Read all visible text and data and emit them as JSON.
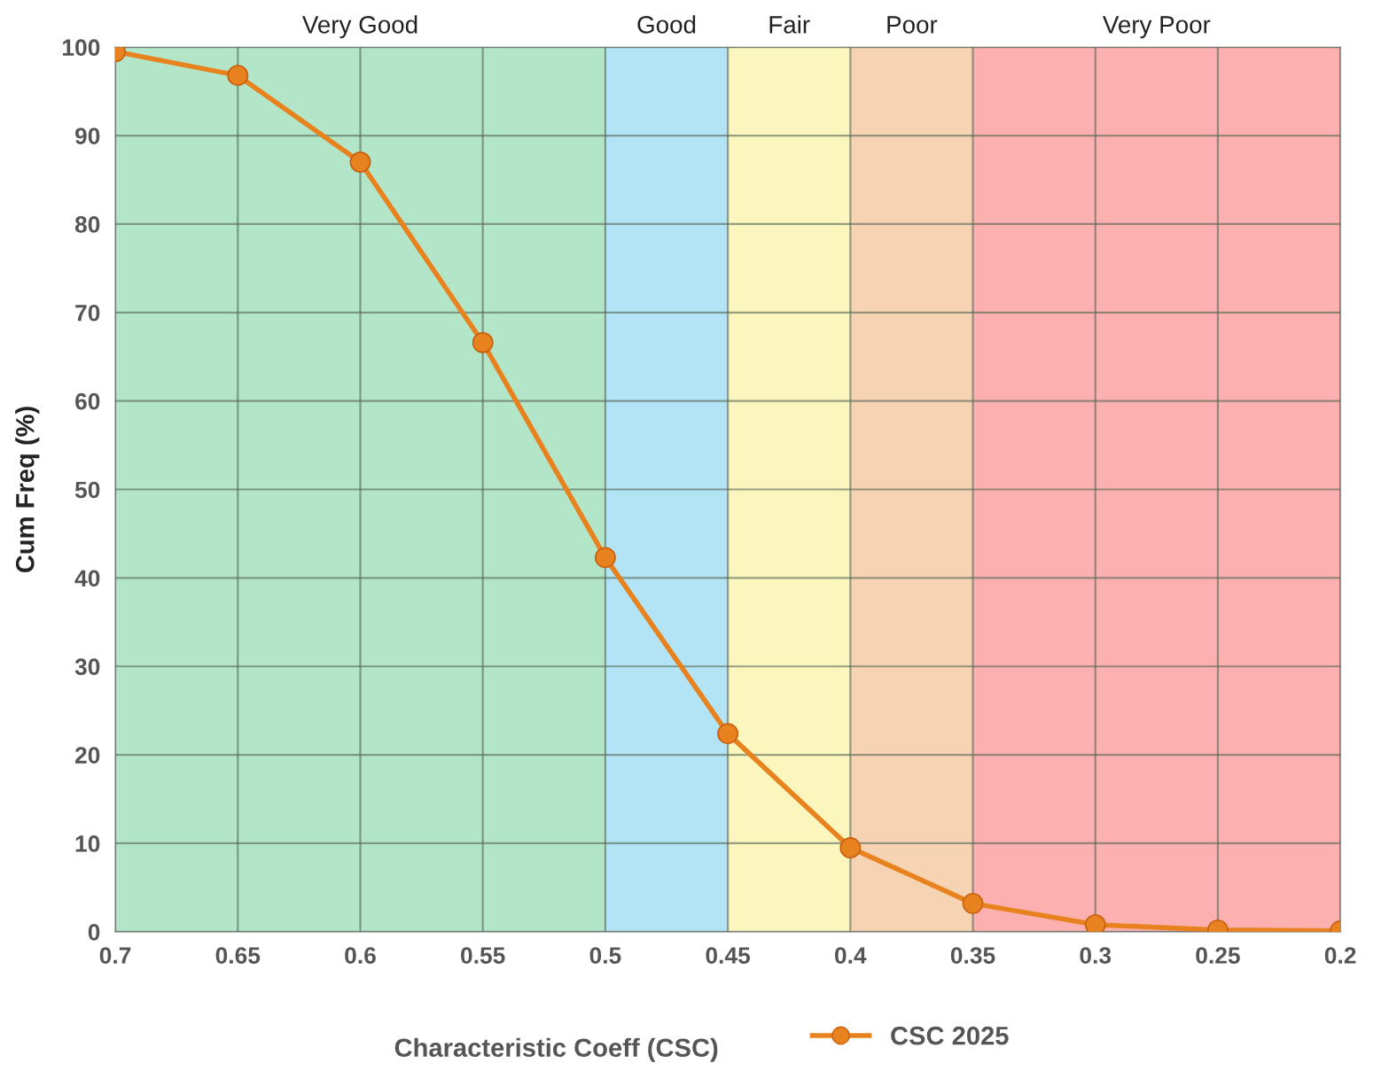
{
  "chart_data": {
    "type": "line",
    "xlabel": "Characteristic Coeff (CSC)",
    "ylabel": "Cum Freq (%)",
    "x": [
      0.7,
      0.65,
      0.6,
      0.55,
      0.5,
      0.45,
      0.4,
      0.35,
      0.3,
      0.25,
      0.2
    ],
    "series": [
      {
        "name": "CSC 2025",
        "color": "#e8821e",
        "values": [
          99.5,
          96.8,
          87,
          66.6,
          42.3,
          22.4,
          9.5,
          3.2,
          0.8,
          0.2,
          0.1
        ]
      }
    ],
    "xlim": [
      0.7,
      0.2
    ],
    "xticks": [
      0.7,
      0.65,
      0.6,
      0.55,
      0.5,
      0.45,
      0.4,
      0.35,
      0.3,
      0.25,
      0.2
    ],
    "ylim": [
      0,
      100
    ],
    "yticks": [
      0,
      10,
      20,
      30,
      40,
      50,
      60,
      70,
      80,
      90,
      100
    ],
    "bands": [
      {
        "axis": "x",
        "from": 0.7,
        "to": 0.5,
        "label": "Very Good",
        "color": "#b3e6c8"
      },
      {
        "axis": "x",
        "from": 0.5,
        "to": 0.45,
        "label": "Good",
        "color": "#b3e4f5"
      },
      {
        "axis": "x",
        "from": 0.45,
        "to": 0.4,
        "label": "Fair",
        "color": "#faf6bd"
      },
      {
        "axis": "x",
        "from": 0.4,
        "to": 0.35,
        "label": "Poor",
        "color": "#f6d3b3"
      },
      {
        "axis": "x",
        "from": 0.35,
        "to": 0.2,
        "label": "Very Poor",
        "color": "#fcb0b0"
      }
    ],
    "grid": true,
    "legend": "bottom",
    "marker": "circle",
    "line_style": "solid"
  }
}
